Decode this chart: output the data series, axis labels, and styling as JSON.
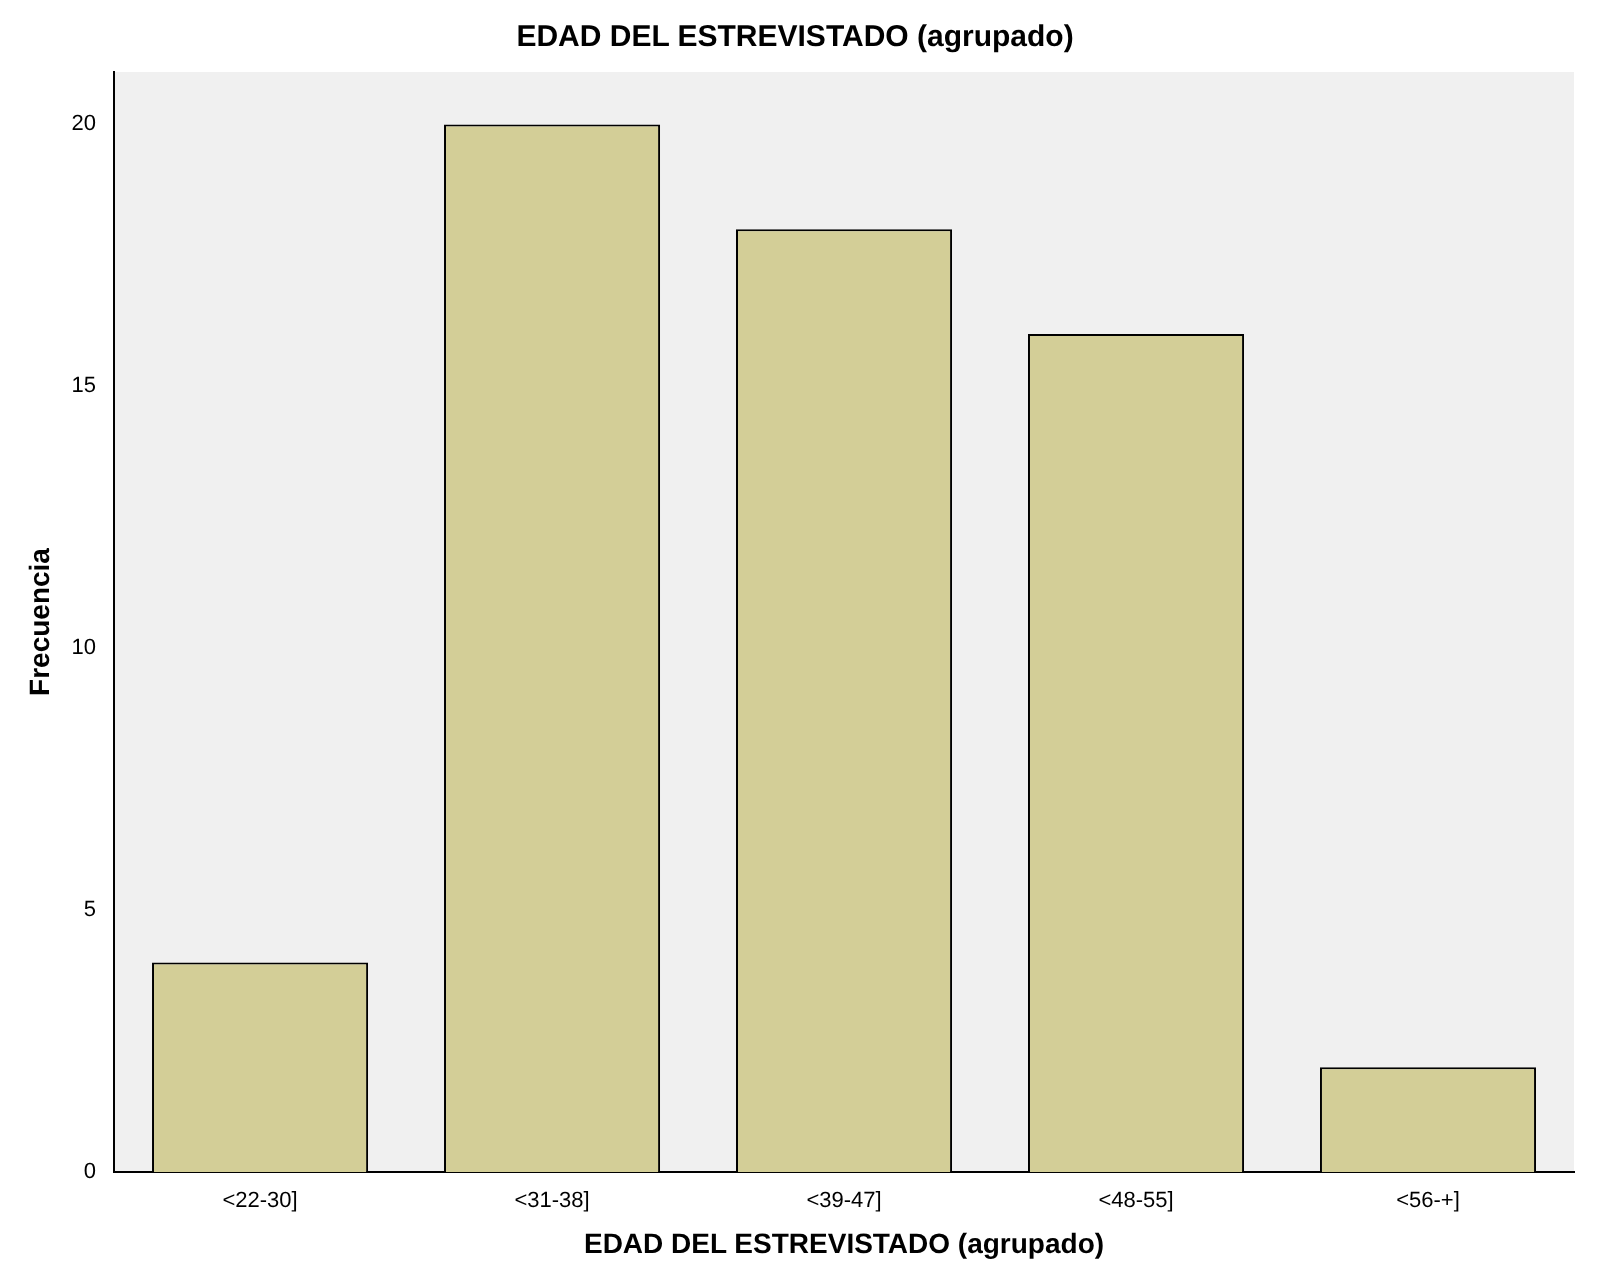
{
  "chart_data": {
    "type": "bar",
    "title": "EDAD DEL ESTREVISTADO (agrupado)",
    "xlabel": "EDAD DEL ESTREVISTADO (agrupado)",
    "ylabel": "Frecuencia",
    "categories": [
      "<22-30]",
      "<31-38]",
      "<39-47]",
      "<48-55]",
      "<56-+]"
    ],
    "values": [
      4,
      20,
      18,
      16,
      2
    ],
    "color": "#d3ce97",
    "ylim": [
      0,
      21
    ],
    "yticks": [
      0,
      5,
      10,
      15,
      20
    ],
    "grid": false,
    "legend": false
  }
}
